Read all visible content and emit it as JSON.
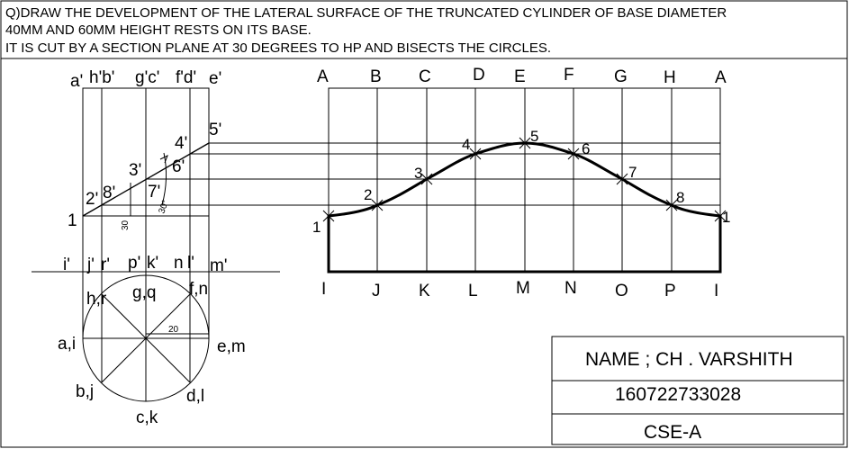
{
  "question": {
    "line1": "Q)DRAW THE DEVELOPMENT OF THE LATERAL SURFACE OF THE TRUNCATED CYLINDER OF BASE DIAMETER",
    "line2": "40MM AND 60MM HEIGHT RESTS ON ITS BASE.",
    "line3": "IT IS CUT BY A SECTION PLANE AT 30 DEGREES TO HP AND BISECTS THE CIRCLES."
  },
  "front_view": {
    "top_labels": [
      "a'",
      "h'b'",
      "g'c'",
      "f'd'",
      "e'"
    ],
    "bottom_labels": [
      "i'",
      "j'",
      "r'",
      "p'",
      "k'",
      "n",
      "l'",
      "m'"
    ],
    "section_points": [
      "1",
      "2'",
      "8'",
      "3'",
      "7'",
      "4'",
      "6'",
      "5'"
    ],
    "angle_label": "30°",
    "height_dim": "30"
  },
  "top_view": {
    "labels": [
      "h,r",
      "g,q",
      "f,n",
      "a,i",
      "e,m",
      "b,j",
      "d,l",
      "c,k"
    ],
    "radius_dim": "20"
  },
  "development": {
    "top_labels": [
      "A",
      "B",
      "C",
      "D",
      "E",
      "F",
      "G",
      "H",
      "A"
    ],
    "bottom_labels": [
      "I",
      "J",
      "K",
      "L",
      "M",
      "N",
      "O",
      "P",
      "I"
    ],
    "curve_labels": [
      "1",
      "2",
      "3",
      "4",
      "5",
      "6",
      "7",
      "8",
      "1"
    ]
  },
  "title_block": {
    "name": "NAME ;  CH . VARSHITH",
    "roll": "160722733028",
    "section": "CSE-A"
  }
}
